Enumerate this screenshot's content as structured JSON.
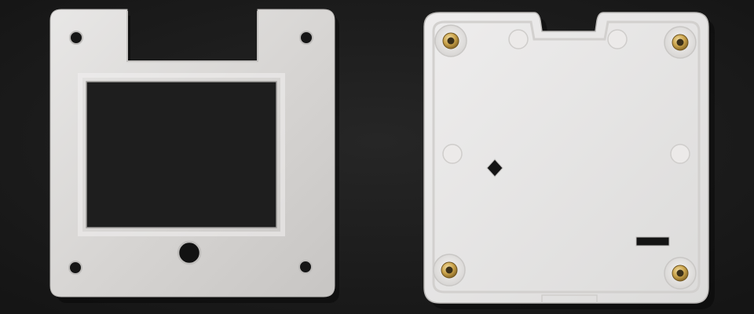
{
  "scene": {
    "colors": {
      "background": "#1c1c1c",
      "plastic_front": "#dcdad8",
      "plastic_back": "#e7e5e4",
      "brass": "#c9a24a",
      "hole": "#161616"
    },
    "objects": [
      {
        "name": "front-frame-plate",
        "features": [
          "rectangular-window",
          "top-notch",
          "four-corner-screw-holes",
          "round-center-hole"
        ]
      },
      {
        "name": "back-cover-plate",
        "features": [
          "four-brass-threaded-inserts",
          "diamond-cutout",
          "slot-cutout",
          "top-notch"
        ]
      }
    ]
  }
}
